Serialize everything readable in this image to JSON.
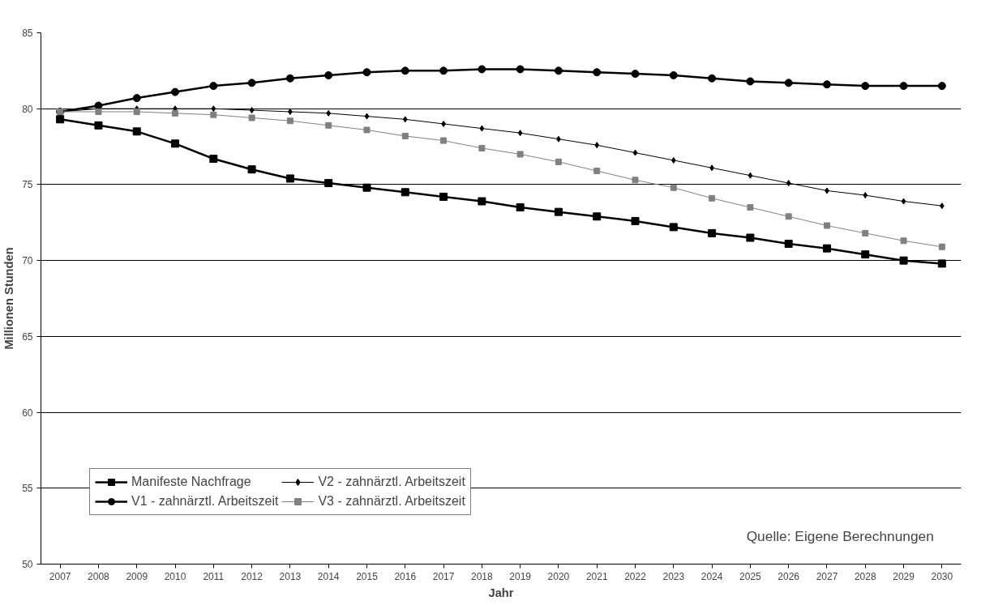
{
  "chart_data": {
    "type": "line",
    "xlabel": "Jahr",
    "ylabel": "Millionen Stunden",
    "categories": [
      "2007",
      "2008",
      "2009",
      "2010",
      "2011",
      "2012",
      "2013",
      "2014",
      "2015",
      "2016",
      "2017",
      "2018",
      "2019",
      "2020",
      "2021",
      "2022",
      "2023",
      "2024",
      "2025",
      "2026",
      "2027",
      "2028",
      "2029",
      "2030"
    ],
    "series": [
      {
        "name": "Manifeste Nachfrage",
        "color": "#000000",
        "marker": "square",
        "values": [
          79.3,
          78.9,
          78.5,
          77.7,
          76.7,
          76.0,
          75.4,
          75.1,
          74.8,
          74.5,
          74.2,
          73.9,
          73.5,
          73.2,
          72.9,
          72.6,
          72.2,
          71.8,
          71.5,
          71.1,
          70.8,
          70.4,
          70.0,
          69.8
        ]
      },
      {
        "name": "V1 - zahnärztl. Arbeitszeit",
        "color": "#000000",
        "marker": "circle",
        "values": [
          79.8,
          80.2,
          80.7,
          81.1,
          81.5,
          81.7,
          82.0,
          82.2,
          82.4,
          82.5,
          82.5,
          82.6,
          82.6,
          82.5,
          82.4,
          82.3,
          82.2,
          82.0,
          81.8,
          81.7,
          81.6,
          81.5,
          81.5,
          81.5
        ]
      },
      {
        "name": "V2 - zahnärztl. Arbeitszeit",
        "color": "#000000",
        "marker": "diamond",
        "values": [
          79.8,
          80.0,
          80.0,
          80.0,
          80.0,
          79.9,
          79.8,
          79.7,
          79.5,
          79.3,
          79.0,
          78.7,
          78.4,
          78.0,
          77.6,
          77.1,
          76.6,
          76.1,
          75.6,
          75.1,
          74.6,
          74.3,
          73.9,
          73.6
        ]
      },
      {
        "name": "V3 - zahnärztl. Arbeitszeit",
        "color": "#808080",
        "marker": "square",
        "values": [
          79.8,
          79.8,
          79.8,
          79.7,
          79.6,
          79.4,
          79.2,
          78.9,
          78.6,
          78.2,
          77.9,
          77.4,
          77.0,
          76.5,
          75.9,
          75.3,
          74.8,
          74.1,
          73.5,
          72.9,
          72.3,
          71.8,
          71.3,
          70.9
        ]
      }
    ],
    "ylim": [
      50,
      85
    ],
    "yticks": [
      50,
      55,
      60,
      65,
      70,
      75,
      80,
      85
    ],
    "grid": "y",
    "legend": "bottom left",
    "annotations": [
      "Quelle: Eigene Berechnungen"
    ]
  }
}
